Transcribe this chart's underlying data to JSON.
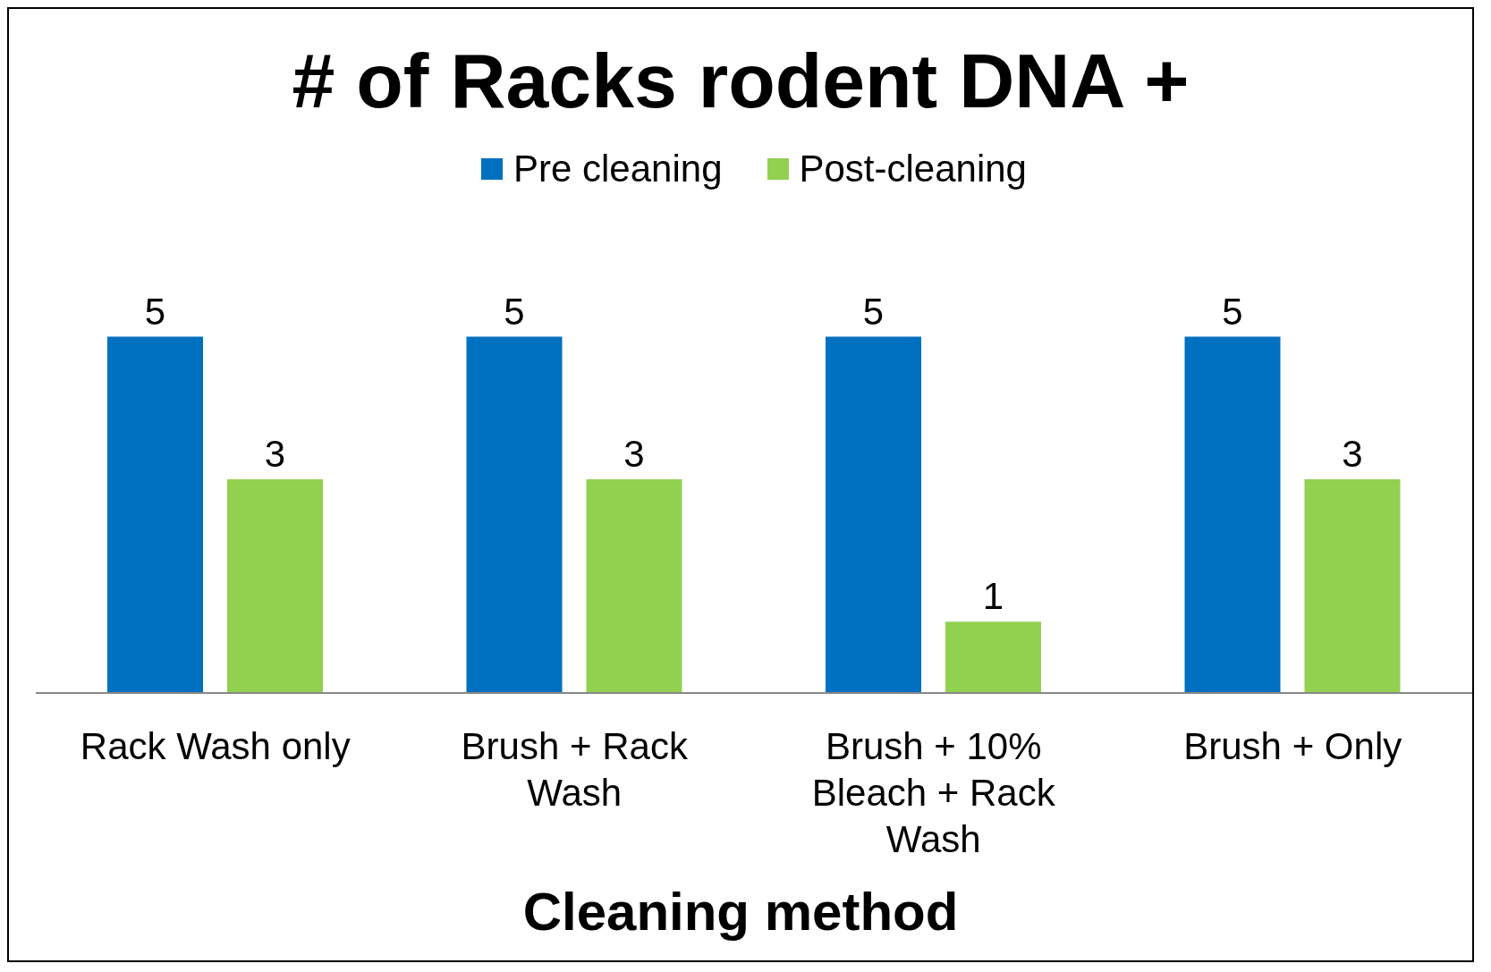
{
  "chart_data": {
    "type": "bar",
    "title": "# of Racks rodent DNA +",
    "xlabel": "Cleaning method",
    "categories": [
      "Rack Wash only",
      "Brush + Rack Wash",
      "Brush + 10% Bleach + Rack Wash",
      "Brush + Only"
    ],
    "series": [
      {
        "name": "Pre cleaning",
        "color": "#0070c0",
        "values": [
          5,
          5,
          5,
          5
        ]
      },
      {
        "name": "Post-cleaning",
        "color": "#92d050",
        "values": [
          3,
          3,
          1,
          3
        ]
      }
    ],
    "data_labels": true,
    "grid": false,
    "legend": "top"
  }
}
